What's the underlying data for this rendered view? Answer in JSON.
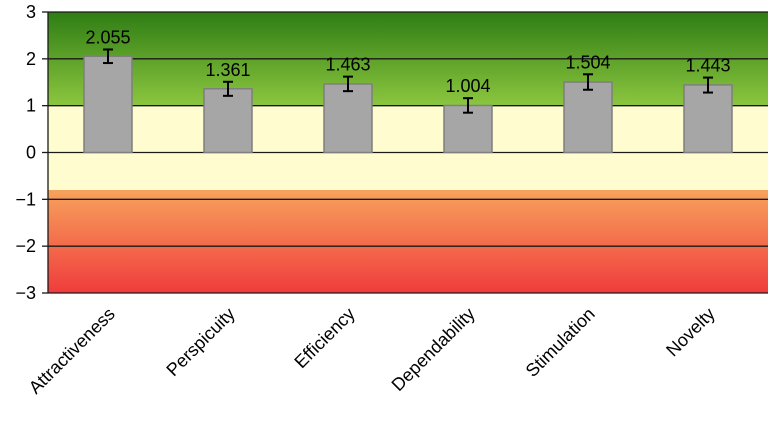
{
  "chart_data": {
    "type": "bar",
    "categories": [
      "Attractiveness",
      "Perspicuity",
      "Efficiency",
      "Dependability",
      "Stimulation",
      "Novelty"
    ],
    "values": [
      2.055,
      1.361,
      1.463,
      1.004,
      1.504,
      1.443
    ],
    "data_labels": [
      "2.055",
      "1.361",
      "1.463",
      "1.004",
      "1.504",
      "1.443"
    ],
    "error_bars": [
      {
        "low": 1.91,
        "high": 2.2
      },
      {
        "low": 1.21,
        "high": 1.51
      },
      {
        "low": 1.31,
        "high": 1.62
      },
      {
        "low": 0.85,
        "high": 1.16
      },
      {
        "low": 1.34,
        "high": 1.67
      },
      {
        "low": 1.28,
        "high": 1.6
      }
    ],
    "y_ticks": [
      3,
      2,
      1,
      0,
      -1,
      -2,
      -3
    ],
    "y_tick_labels": [
      "3",
      "2",
      "1",
      "0",
      "−1",
      "−2",
      "−3"
    ],
    "ylim": [
      -3,
      3
    ],
    "grid": true,
    "bar_color": "#a6a6a6",
    "bar_edge_color": "#7f7f7f",
    "background_bands": [
      {
        "from": 3,
        "to": 1,
        "color_top": "#2e7d14",
        "color_bottom": "#8cc63f"
      },
      {
        "from": 1,
        "to": -0.8,
        "color_top": "#fffdd0",
        "color_bottom": "#fffdd0"
      },
      {
        "from": -0.8,
        "to": -3,
        "color_top": "#f7a35c",
        "color_bottom": "#f03c3c"
      }
    ]
  }
}
